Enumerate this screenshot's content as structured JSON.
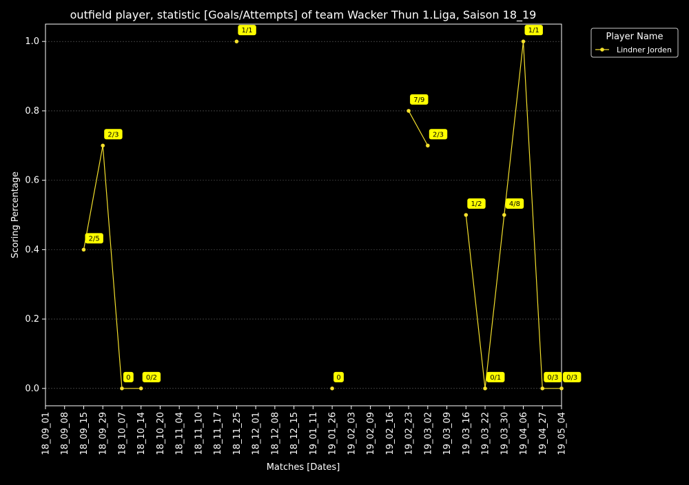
{
  "chart_data": {
    "type": "line",
    "title": "outfield player, statistic [Goals/Attempts] of team Wacker Thun 1.Liga, Saison 18_19",
    "xlabel": "Matches [Dates]",
    "ylabel": "Scoring Percentage",
    "ylim": [
      -0.05,
      1.05
    ],
    "yticks": [
      "0.0",
      "0.2",
      "0.4",
      "0.6",
      "0.8",
      "1.0"
    ],
    "grid": true,
    "categories": [
      "18_09_01",
      "18_09_08",
      "18_09_15",
      "18_09_29",
      "18_10_07",
      "18_10_14",
      "18_10_20",
      "18_11_04",
      "18_11_10",
      "18_11_17",
      "18_11_25",
      "18_12_01",
      "18_12_08",
      "18_12_15",
      "19_01_11",
      "19_01_26",
      "19_02_03",
      "19_02_09",
      "19_02_16",
      "19_02_23",
      "19_03_02",
      "19_03_09",
      "19_03_16",
      "19_03_22",
      "19_03_30",
      "19_04_06",
      "19_04_27",
      "19_05_04"
    ],
    "legend": {
      "title": "Player Name",
      "position": "outside-top-right"
    },
    "series": [
      {
        "name": "Lindner Jorden",
        "color": "#f5e12c",
        "label_bg": "#ffff00",
        "values": [
          null,
          null,
          0.4,
          0.7,
          0.0,
          0.0,
          null,
          null,
          null,
          null,
          1.0,
          null,
          null,
          null,
          null,
          0.0,
          null,
          null,
          null,
          0.8,
          0.7,
          null,
          0.5,
          0.0,
          0.5,
          1.0,
          0.0,
          0.0
        ],
        "labels": [
          null,
          null,
          "2/5",
          "2/3",
          "0",
          "0/2",
          null,
          null,
          null,
          null,
          "1/1",
          null,
          null,
          null,
          null,
          "0",
          null,
          null,
          null,
          "7/9",
          "2/3",
          null,
          "1/2",
          "0/1",
          "4/8",
          "1/1",
          "0/3",
          "0/3"
        ]
      }
    ]
  }
}
